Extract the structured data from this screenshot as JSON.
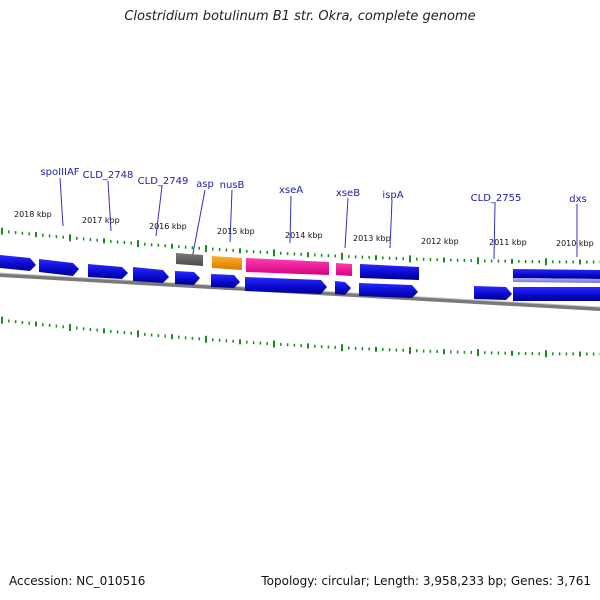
{
  "title": "Clostridium botulinum B1 str. Okra, complete genome",
  "footer": {
    "accession": "Accession: NC_010516",
    "summary": "Topology: circular; Length: 3,958,233 bp; Genes: 3,761"
  },
  "colors": {
    "cds": "#1010e0",
    "trna": "#ff9900",
    "highlight": "#ff1aa0",
    "other": "#6a6a6a",
    "tick": "#1d8a1d",
    "label_line": "#3030c0",
    "backbone": "#888888"
  },
  "kbp_labels": [
    "2018 kbp",
    "2017 kbp",
    "2016 kbp",
    "2015 kbp",
    "2014 kbp",
    "2013 kbp",
    "2012 kbp",
    "2011 kbp",
    "2010 kbp"
  ],
  "gene_labels": [
    "spoIIIAF",
    "CLD_2748",
    "CLD_2749",
    "asp",
    "nusB",
    "xseA",
    "xseB",
    "ispA",
    "CLD_2755",
    "dxs"
  ]
}
